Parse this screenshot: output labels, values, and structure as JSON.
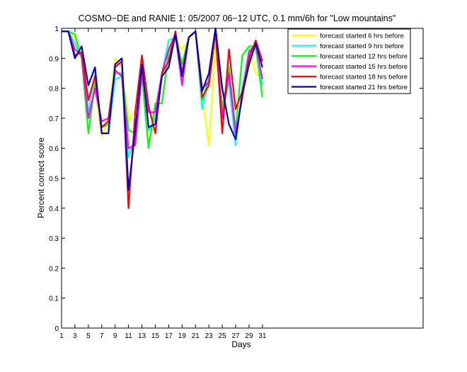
{
  "chart_data": {
    "type": "line",
    "title": "COSMO−DE and RANIE 1: 05/2007 06−12 UTC, 0.1 mm/6h for \"Low mountains\"",
    "xlabel": "Days",
    "ylabel": "Percent correct score",
    "xlim": [
      1,
      55
    ],
    "ylim": [
      0,
      1
    ],
    "x_ticks": [
      1,
      3,
      5,
      7,
      9,
      11,
      13,
      15,
      17,
      19,
      21,
      23,
      25,
      27,
      29,
      31
    ],
    "y_ticks": [
      0,
      0.1,
      0.2,
      0.3,
      0.4,
      0.5,
      0.6,
      0.7,
      0.8,
      0.9,
      1
    ],
    "y_tick_labels": [
      "0",
      "0.1",
      "0.2",
      "0.3",
      "0.4",
      "0.5",
      "0.6",
      "0.7",
      "0.8",
      "0.9",
      "1"
    ],
    "grid": false,
    "legend_position": "top-right",
    "x": [
      1,
      2,
      3,
      4,
      5,
      6,
      7,
      8,
      9,
      10,
      11,
      12,
      13,
      14,
      15,
      16,
      17,
      18,
      19,
      20,
      21,
      22,
      23,
      24,
      25,
      26,
      27,
      28,
      29,
      30,
      31
    ],
    "series": [
      {
        "name": "forecast started 6 hrs before",
        "color": "#ffff00",
        "values": [
          0.99,
          0.99,
          0.97,
          0.9,
          0.7,
          0.8,
          0.64,
          0.7,
          0.9,
          0.87,
          0.69,
          0.73,
          0.85,
          0.61,
          0.74,
          0.84,
          0.95,
          0.96,
          0.93,
          0.96,
          0.99,
          0.78,
          0.61,
          0.94,
          0.7,
          0.86,
          0.63,
          0.8,
          0.93,
          0.85,
          0.83
        ]
      },
      {
        "name": "forecast started 9 hrs before",
        "color": "#00ffff",
        "values": [
          0.99,
          0.99,
          0.95,
          0.9,
          0.72,
          0.85,
          0.65,
          0.65,
          0.83,
          0.84,
          0.57,
          0.64,
          0.86,
          0.66,
          0.7,
          0.85,
          0.96,
          0.97,
          0.85,
          0.97,
          0.99,
          0.73,
          0.83,
          0.99,
          0.73,
          0.82,
          0.61,
          0.8,
          0.93,
          0.93,
          0.81
        ]
      },
      {
        "name": "forecast started 12 hrs before",
        "color": "#00ff00",
        "values": [
          0.99,
          0.99,
          0.98,
          0.9,
          0.65,
          0.82,
          0.67,
          0.68,
          0.85,
          0.85,
          0.66,
          0.65,
          0.84,
          0.6,
          0.75,
          0.75,
          0.92,
          0.98,
          0.88,
          0.97,
          0.99,
          0.76,
          0.83,
          0.99,
          0.73,
          0.87,
          0.66,
          0.91,
          0.94,
          0.94,
          0.77
        ]
      },
      {
        "name": "forecast started 15 hrs before",
        "color": "#ff00ff",
        "values": [
          0.99,
          0.99,
          0.93,
          0.91,
          0.7,
          0.8,
          0.69,
          0.7,
          0.86,
          0.84,
          0.6,
          0.61,
          0.85,
          0.72,
          0.72,
          0.85,
          0.93,
          0.98,
          0.81,
          0.97,
          0.99,
          0.8,
          0.82,
          0.99,
          0.7,
          0.85,
          0.65,
          0.77,
          0.92,
          0.95,
          0.83
        ]
      },
      {
        "name": "forecast started 18 hrs before",
        "color": "#ff0000",
        "values": [
          0.99,
          0.99,
          0.91,
          0.92,
          0.76,
          0.84,
          0.67,
          0.69,
          0.87,
          0.89,
          0.4,
          0.72,
          0.91,
          0.74,
          0.65,
          0.85,
          0.89,
          0.99,
          0.85,
          0.97,
          0.99,
          0.77,
          0.81,
          0.99,
          0.65,
          0.93,
          0.73,
          0.79,
          0.9,
          0.96,
          0.89
        ]
      },
      {
        "name": "forecast started 21 hrs before",
        "color": "#0000cc",
        "values": [
          0.99,
          0.99,
          0.9,
          0.94,
          0.81,
          0.87,
          0.65,
          0.65,
          0.88,
          0.9,
          0.46,
          0.66,
          0.88,
          0.67,
          0.68,
          0.84,
          0.87,
          0.98,
          0.84,
          0.97,
          0.99,
          0.79,
          0.85,
          1.0,
          0.8,
          0.68,
          0.63,
          0.78,
          0.88,
          0.95,
          0.87
        ]
      }
    ]
  }
}
